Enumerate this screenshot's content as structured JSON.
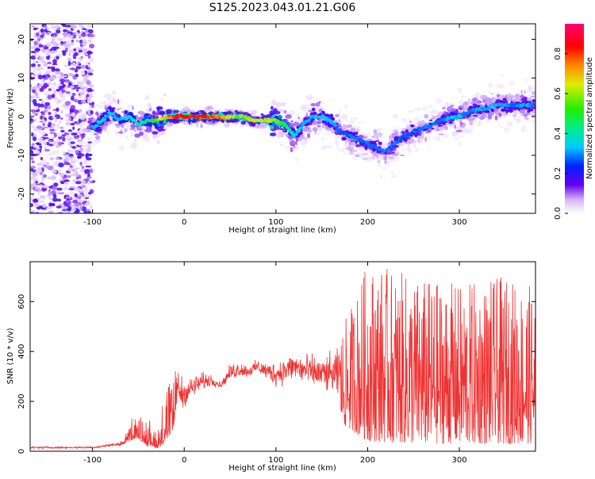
{
  "title": "S125.2023.043.01.21.G06",
  "colors": {
    "snr_line": "#ee3333",
    "axis": "#000000",
    "background": "#ffffff"
  },
  "chart_data": [
    {
      "type": "heatmap",
      "xlabel": "Height of straight line (km)",
      "ylabel": "Frequency (Hz)",
      "xlim": [
        -168,
        383
      ],
      "ylim": [
        -25,
        24
      ],
      "x_ticks": [
        -100,
        0,
        100,
        200,
        300
      ],
      "y_ticks": [
        -20,
        -10,
        0,
        10,
        20
      ],
      "x_tick_labels": [
        "-100",
        "0",
        "100",
        "200",
        "300"
      ],
      "y_tick_labels": [
        "-20",
        "-10",
        "0",
        "10",
        "20"
      ],
      "colorbar": {
        "label": "Normalized spectral amplitude",
        "range": [
          0,
          0.95
        ],
        "ticks": [
          0.0,
          0.2,
          0.4,
          0.6,
          0.8
        ],
        "tick_labels": [
          "0.0",
          "0.2",
          "0.4",
          "0.6",
          "0.8"
        ],
        "colormap": "rainbow"
      },
      "ridge": {
        "x": [
          -100,
          -90,
          -80,
          -70,
          -60,
          -50,
          -40,
          -30,
          -20,
          -10,
          0,
          20,
          40,
          60,
          80,
          90,
          100,
          110,
          120,
          130,
          140,
          150,
          160,
          170,
          180,
          190,
          200,
          210,
          220,
          230,
          240,
          250,
          260,
          270,
          280,
          290,
          300,
          310,
          320,
          330,
          340,
          350,
          360,
          370,
          383
        ],
        "y": [
          -3,
          -1,
          1,
          -1,
          0,
          -2,
          -1,
          -1,
          0,
          0,
          0,
          0,
          0,
          0,
          -1,
          -1,
          -1,
          -2,
          -5,
          -2,
          0,
          0,
          -1,
          -4,
          -5,
          -6,
          -7,
          -8,
          -9,
          -7,
          -5,
          -4,
          -3,
          -2,
          -1,
          0,
          0,
          1,
          2,
          2,
          3,
          3,
          3,
          3,
          3
        ],
        "peak_amplitude": [
          0.35,
          0.4,
          0.35,
          0.35,
          0.4,
          0.4,
          0.45,
          0.6,
          0.75,
          0.9,
          0.95,
          0.9,
          0.8,
          0.6,
          0.7,
          0.7,
          0.65,
          0.5,
          0.4,
          0.35,
          0.35,
          0.4,
          0.35,
          0.3,
          0.3,
          0.3,
          0.3,
          0.3,
          0.3,
          0.3,
          0.3,
          0.3,
          0.3,
          0.3,
          0.3,
          0.35,
          0.35,
          0.3,
          0.35,
          0.35,
          0.35,
          0.35,
          0.3,
          0.35,
          0.3
        ]
      },
      "noise_region_x": [
        -168,
        -100
      ]
    },
    {
      "type": "line",
      "xlabel": "Height of straight line (km)",
      "ylabel": "SNR (10 * v/v)",
      "xlim": [
        -168,
        383
      ],
      "ylim": [
        0,
        760
      ],
      "x_ticks": [
        -100,
        0,
        100,
        200,
        300
      ],
      "y_ticks": [
        0,
        200,
        400,
        600
      ],
      "x_tick_labels": [
        "-100",
        "0",
        "100",
        "200",
        "300"
      ],
      "y_tick_labels": [
        "0",
        "200",
        "400",
        "600"
      ],
      "envelope": {
        "x": [
          -168,
          -100,
          -70,
          -60,
          -50,
          -40,
          -30,
          -20,
          -10,
          0,
          10,
          20,
          30,
          40,
          50,
          60,
          70,
          80,
          90,
          100,
          110,
          120,
          130,
          150,
          165,
          175,
          200,
          250,
          300,
          350,
          383
        ],
        "low": [
          10,
          10,
          20,
          40,
          50,
          20,
          10,
          30,
          100,
          160,
          200,
          230,
          250,
          250,
          270,
          280,
          290,
          300,
          270,
          240,
          250,
          260,
          230,
          220,
          180,
          100,
          40,
          30,
          30,
          30,
          30
        ],
        "high": [
          20,
          20,
          40,
          120,
          180,
          140,
          120,
          280,
          400,
          300,
          320,
          330,
          320,
          280,
          360,
          380,
          350,
          380,
          370,
          380,
          400,
          420,
          420,
          400,
          430,
          520,
          760,
          700,
          670,
          700,
          660
        ]
      }
    }
  ]
}
